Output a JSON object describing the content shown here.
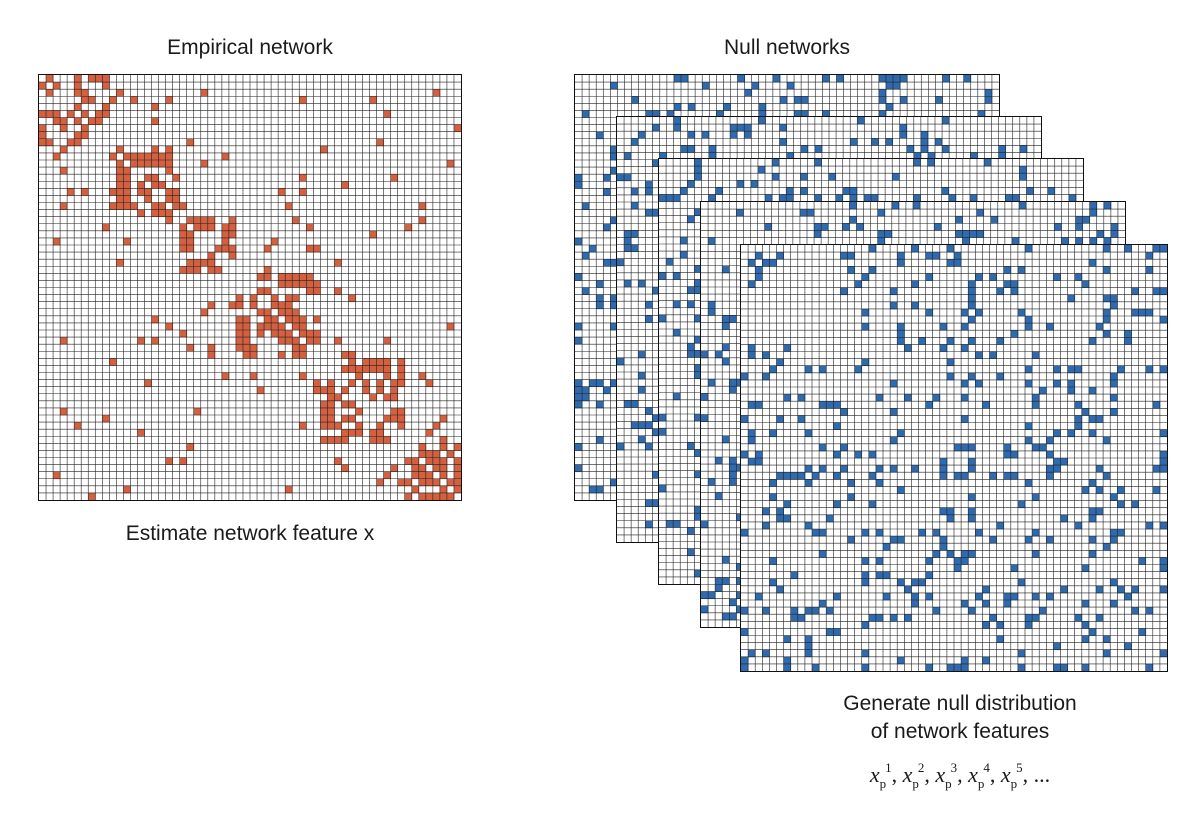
{
  "empirical": {
    "title": "Empirical network",
    "caption": "Estimate network feature x",
    "grid_size": 60,
    "fill_color": "#d4603f",
    "line_color": "#222222"
  },
  "null_networks": {
    "title": "Null networks",
    "count": 5,
    "grid_size": 60,
    "fill_color": "#2e6aad",
    "line_color": "#222222",
    "caption_lines": [
      "Generate null distribution",
      "of network features"
    ],
    "formula": {
      "symbol": "x",
      "subscript": "p",
      "indices": [
        "1",
        "2",
        "3",
        "4",
        "5"
      ],
      "ellipsis": "..."
    }
  }
}
